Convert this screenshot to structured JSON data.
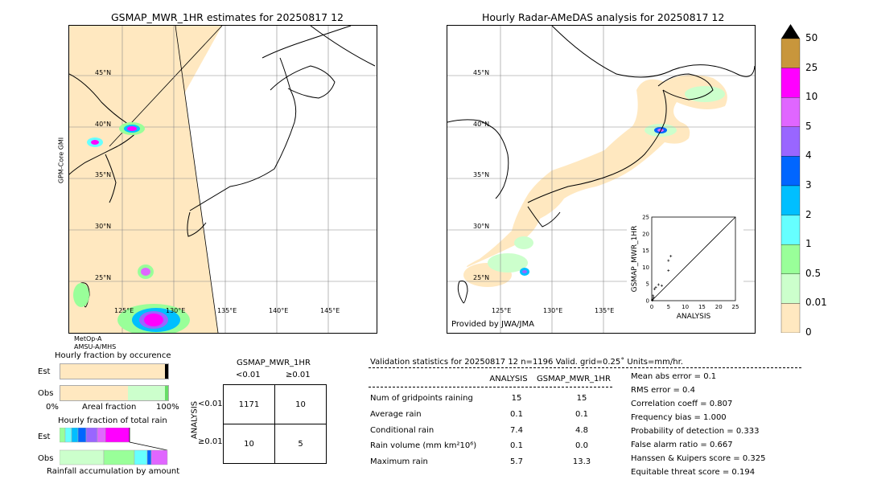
{
  "left_map": {
    "title": "GSMAP_MWR_1HR estimates for 20250817 12",
    "sensor_side": "GPM-Core GMI",
    "sensor_bottom_1": "MetOp-A",
    "sensor_bottom_2": "AMSU-A/MHS",
    "lat_labels": [
      "45°N",
      "40°N",
      "35°N",
      "30°N",
      "25°N"
    ],
    "lon_labels": [
      "125°E",
      "130°E",
      "135°E",
      "140°E",
      "145°E"
    ]
  },
  "right_map": {
    "title": "Hourly Radar-AMeDAS analysis for 20250817 12",
    "lat_labels": [
      "45°N",
      "40°N",
      "35°N",
      "30°N",
      "25°N"
    ],
    "lon_labels": [
      "125°E",
      "130°E",
      "135°E"
    ],
    "provided_by": "Provided by JWA/JMA"
  },
  "colorbar": {
    "labels": [
      "50",
      "25",
      "10",
      "5",
      "4",
      "3",
      "2",
      "1",
      "0.5",
      "0.01",
      "0"
    ],
    "colors": [
      "#c8963c",
      "#ff00ff",
      "#e066ff",
      "#9966ff",
      "#0066ff",
      "#00bfff",
      "#66ffff",
      "#99ff99",
      "#ccffcc",
      "#ffe8c0"
    ],
    "over_color": "#000000"
  },
  "chart_data": [
    {
      "type": "scatter",
      "title": "",
      "xlabel": "ANALYSIS",
      "ylabel": "GSMAP_MWR_1HR",
      "xlim": [
        0,
        25
      ],
      "ylim": [
        0,
        25
      ],
      "ticks": [
        "0",
        "5",
        "10",
        "15",
        "20",
        "25"
      ],
      "points": [
        [
          0.1,
          0.2
        ],
        [
          0.3,
          0.5
        ],
        [
          0.5,
          1.0
        ],
        [
          0.8,
          3.5
        ],
        [
          1.2,
          4.0
        ],
        [
          2.0,
          4.8
        ],
        [
          3.0,
          4.5
        ],
        [
          5.0,
          9.0
        ],
        [
          5.0,
          12.0
        ],
        [
          5.7,
          13.3
        ],
        [
          0.2,
          0.1
        ],
        [
          0.4,
          1.5
        ]
      ]
    },
    {
      "type": "bar",
      "title": "Hourly fraction by occurence",
      "xlabel": "Areal fraction",
      "x_tick_labels": [
        "0%",
        "100%"
      ],
      "categories": [
        "Est",
        "Obs"
      ]
    },
    {
      "type": "bar",
      "title": "Hourly fraction of total rain",
      "xlabel": "Rainfall accumulation by amount",
      "categories": [
        "Est",
        "Obs"
      ]
    }
  ],
  "contingency": {
    "title": "GSMAP_MWR_1HR",
    "col_lt": "<0.01",
    "col_ge": "≥0.01",
    "row_axis": "ANALYSIS",
    "row_lt": "<0.01",
    "row_ge": "≥0.01",
    "cells": [
      "1171",
      "10",
      "10",
      "5"
    ]
  },
  "validation": {
    "header": "Validation statistics for 20250817 12  n=1196 Valid. grid=0.25˚ Units=mm/hr.",
    "col_analysis": "ANALYSIS",
    "col_gsmap": "GSMAP_MWR_1HR",
    "rows": [
      {
        "label": "Num of gridpoints raining",
        "analysis": "15",
        "gsmap": "15"
      },
      {
        "label": "Average rain",
        "analysis": "0.1",
        "gsmap": "0.1"
      },
      {
        "label": "Conditional rain",
        "analysis": "7.4",
        "gsmap": "4.8"
      },
      {
        "label": "Rain volume (mm km²10⁶)",
        "analysis": "0.1",
        "gsmap": "0.0"
      },
      {
        "label": "Maximum rain",
        "analysis": "5.7",
        "gsmap": "13.3"
      }
    ],
    "scores": [
      "Mean abs error =    0.1",
      "RMS error =    0.4",
      "Correlation coeff =  0.807",
      "Frequency bias =  1.000",
      "Probability of detection =  0.333",
      "False alarm ratio =  0.667",
      "Hanssen & Kuipers score =  0.325",
      "Equitable threat score =  0.194"
    ]
  }
}
